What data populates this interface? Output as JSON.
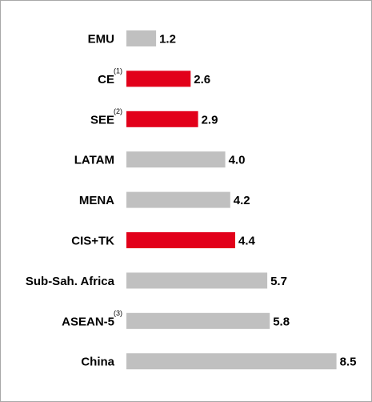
{
  "chart_data": {
    "type": "bar",
    "orientation": "horizontal",
    "categories": [
      "EMU",
      "CE",
      "SEE",
      "LATAM",
      "MENA",
      "CIS+TK",
      "Sub-Sah. Africa",
      "ASEAN-5",
      "China"
    ],
    "footnotes": [
      "",
      "(1)",
      "(2)",
      "",
      "",
      "",
      "",
      "(3)",
      ""
    ],
    "values": [
      1.2,
      2.6,
      2.9,
      4.0,
      4.2,
      4.4,
      5.7,
      5.8,
      8.5
    ],
    "value_labels": [
      "1.2",
      "2.6",
      "2.9",
      "4.0",
      "4.2",
      "4.4",
      "5.7",
      "5.8",
      "8.5"
    ],
    "highlighted": [
      false,
      true,
      true,
      false,
      false,
      true,
      false,
      false,
      false
    ],
    "colors": {
      "default": "#c0c0c0",
      "highlight": "#e2001a"
    },
    "xlim": [
      0,
      8.5
    ],
    "grid": false,
    "legend": "none"
  }
}
